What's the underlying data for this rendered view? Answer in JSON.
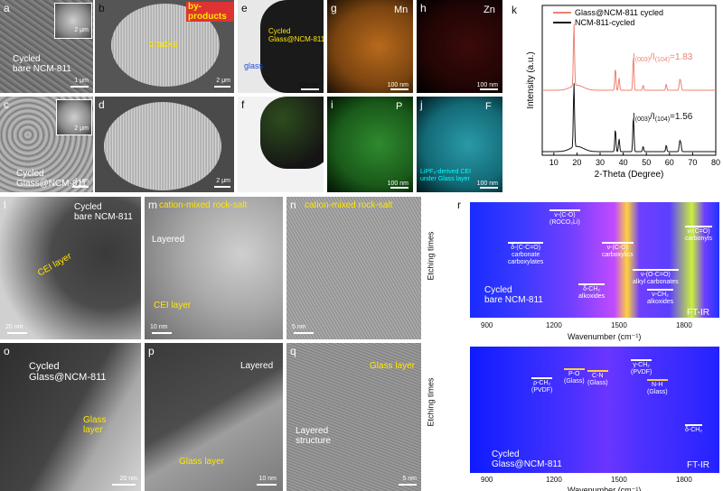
{
  "panels": {
    "a": {
      "letter": "a",
      "label": "Cycled\nbare NCM-811",
      "scale": "1 μm",
      "inset_scale": "2 μm"
    },
    "b": {
      "letter": "b",
      "byproducts": "by-products",
      "cracks": "cracks",
      "scale": "2 μm"
    },
    "c": {
      "letter": "c",
      "label": "Cycled\nGlass@NCM-811",
      "scale": "1 μm",
      "inset_scale": "2 μm"
    },
    "d": {
      "letter": "d",
      "scale": "2 μm"
    },
    "e": {
      "letter": "e",
      "label": "Cycled\nGlass@NCM-811",
      "glass": "glass",
      "scale": "100 nm"
    },
    "f": {
      "letter": "f"
    },
    "g": {
      "letter": "g",
      "element": "Mn",
      "scale": "100 nm"
    },
    "h": {
      "letter": "h",
      "element": "Zn",
      "scale": "100 nm"
    },
    "i": {
      "letter": "i",
      "element": "P",
      "scale": "100 nm"
    },
    "j": {
      "letter": "j",
      "element": "F",
      "caption": "LiPF₆-derived CEI\nunder Glass layer",
      "scale": "100 nm"
    },
    "l": {
      "letter": "l",
      "label": "Cycled\nbare NCM-811",
      "cei": "CEI layer",
      "scale": "20 nm"
    },
    "m": {
      "letter": "m",
      "title": "cation-mixed rock-salt",
      "layered": "Layered",
      "cei": "CEI layer",
      "scale": "10 nm"
    },
    "n": {
      "letter": "n",
      "title": "cation-mixed rock-salt",
      "scale": "5 nm"
    },
    "o": {
      "letter": "o",
      "label": "Cycled\nGlass@NCM-811",
      "glass": "Glass\nlayer",
      "scale": "20 nm"
    },
    "p": {
      "letter": "p",
      "layered": "Layered",
      "glass": "Glass layer",
      "scale": "10 nm"
    },
    "q": {
      "letter": "q",
      "glass": "Glass layer",
      "structure": "Layered\nstructure",
      "scale": "5 nm"
    }
  },
  "xrd": {
    "letter": "k",
    "legend": [
      "Glass@NCM-811 cycled",
      "NCM-811-cycled"
    ],
    "ylabel": "Intensity (a.u.)",
    "xlabel": "2-Theta (Degree)",
    "ticks": [
      "10",
      "20",
      "30",
      "40",
      "50",
      "60",
      "70",
      "80"
    ],
    "ratio_glass": "1.83",
    "ratio_bare": "1.56",
    "colors": {
      "glass": "#f08070",
      "bare": "#111111"
    }
  },
  "ftir": {
    "letter": "r",
    "ylabel": "Etching times",
    "xlabel": "Wavenumber (cm⁻¹)",
    "ticks": [
      "900",
      "1200",
      "1500",
      "1800"
    ],
    "tag": "FT-IR",
    "top_sample": "Cycled\nbare NCM-811",
    "bottom_sample": "Cycled\nGlass@NCM-811",
    "top_bands": [
      {
        "t": "ν-(C-O)\n(ROCO₂Li)"
      },
      {
        "t": "δ-(C-C=O)\ncarbonate\ncarboxylates"
      },
      {
        "t": "ν-(C-O)\ncarboxylics"
      },
      {
        "t": "ν-(C=O)\ncarbonyls"
      },
      {
        "t": "ν-(O-C=O)\nalkyl carbonates"
      },
      {
        "t": "δ-CH₂\nalkoxides"
      },
      {
        "t": "ν-CH₂\nalkoxides"
      }
    ],
    "bottom_bands": [
      {
        "t": "ρ-CH₂\n(PVDF)"
      },
      {
        "t": "P-O\n(Glass)"
      },
      {
        "t": "C-N\n(Glass)"
      },
      {
        "t": "γ-CH₂\n(PVDF)"
      },
      {
        "t": "N-H\n(Glass)"
      },
      {
        "t": "δ-CH₂"
      }
    ]
  }
}
